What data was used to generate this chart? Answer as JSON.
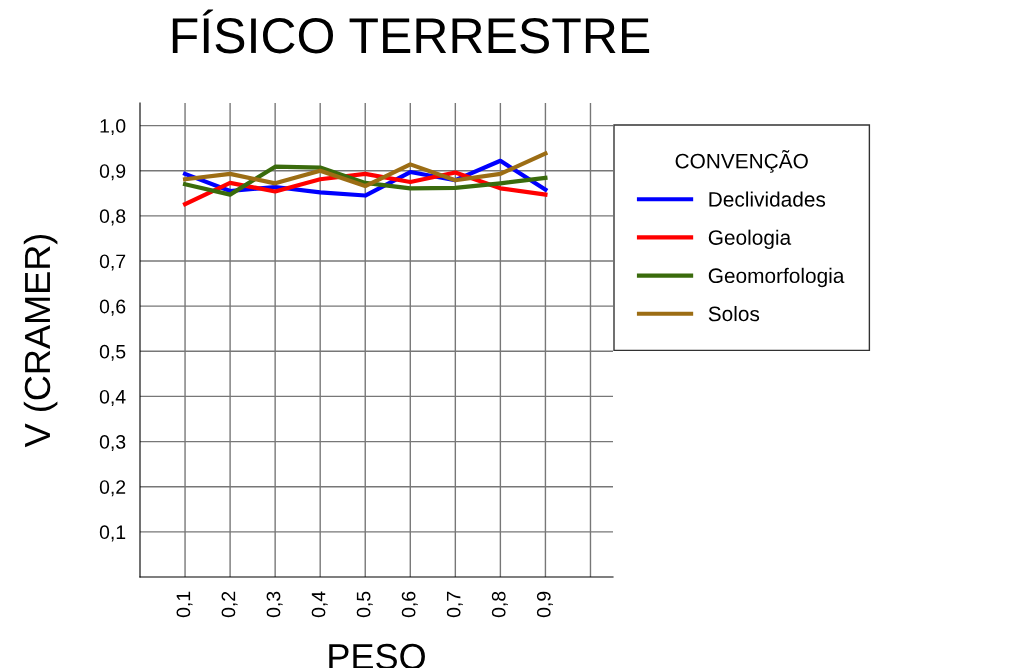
{
  "chart_data": {
    "type": "line",
    "title": "FÍSICO TERRESTRE",
    "xlabel": "PESO",
    "ylabel": "V (CRAMER)",
    "legend_title": "CONVENÇÃO",
    "x": [
      0.1,
      0.2,
      0.3,
      0.4,
      0.5,
      0.6,
      0.7,
      0.8,
      0.9
    ],
    "series": [
      {
        "name": "Declividades",
        "color": "#0000ff",
        "values": [
          0.893,
          0.855,
          0.864,
          0.852,
          0.845,
          0.897,
          0.879,
          0.922,
          0.858
        ]
      },
      {
        "name": "Geologia",
        "color": "#ff0000",
        "values": [
          0.826,
          0.873,
          0.854,
          0.881,
          0.893,
          0.875,
          0.896,
          0.861,
          0.847
        ]
      },
      {
        "name": "Geomorfologia",
        "color": "#3a6b0c",
        "values": [
          0.87,
          0.847,
          0.909,
          0.907,
          0.873,
          0.861,
          0.862,
          0.872,
          0.884
        ]
      },
      {
        "name": "Solos",
        "color": "#9c6d14",
        "values": [
          0.881,
          0.893,
          0.872,
          0.9,
          0.866,
          0.914,
          0.879,
          0.893,
          0.938
        ]
      }
    ],
    "xlim": [
      0,
      1.05
    ],
    "ylim": [
      0,
      1.05
    ],
    "xticks": [
      {
        "value": 0.1,
        "label": "0,1"
      },
      {
        "value": 0.2,
        "label": "0,2"
      },
      {
        "value": 0.3,
        "label": "0,3"
      },
      {
        "value": 0.4,
        "label": "0,4"
      },
      {
        "value": 0.5,
        "label": "0,5"
      },
      {
        "value": 0.6,
        "label": "0,6"
      },
      {
        "value": 0.7,
        "label": "0,7"
      },
      {
        "value": 0.8,
        "label": "0,8"
      },
      {
        "value": 0.9,
        "label": "0,9"
      },
      {
        "value": 1.0,
        "label": null
      }
    ],
    "yticks": [
      {
        "value": 0.1,
        "label": "0,1"
      },
      {
        "value": 0.2,
        "label": "0,2"
      },
      {
        "value": 0.3,
        "label": "0,3"
      },
      {
        "value": 0.4,
        "label": "0,4"
      },
      {
        "value": 0.5,
        "label": "0,5"
      },
      {
        "value": 0.6,
        "label": "0,6"
      },
      {
        "value": 0.7,
        "label": "0,7"
      },
      {
        "value": 0.8,
        "label": "0,8"
      },
      {
        "value": 0.9,
        "label": "0,9"
      },
      {
        "value": 1.0,
        "label": "1,0"
      }
    ],
    "grid": true,
    "legend": "right",
    "line_style": "solid",
    "marker": "none"
  }
}
